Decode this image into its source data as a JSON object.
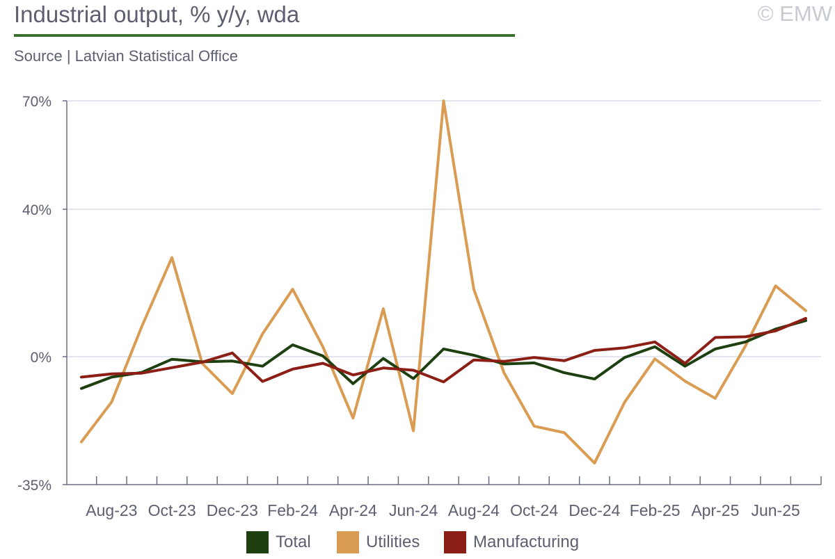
{
  "header": {
    "title": "Industrial output, % y/y, wda",
    "source": "Source | Latvian Statistical Office",
    "copyright": "© EMW"
  },
  "chart_data": {
    "type": "line",
    "title": "Industrial output, % y/y, wda",
    "xlabel": "",
    "ylabel": "",
    "ylim": [
      -35,
      70
    ],
    "yticks": [
      70,
      40,
      0,
      -35
    ],
    "ytick_labels": [
      "70%",
      "40%",
      "0%",
      "-35%"
    ],
    "grid": true,
    "legend": "bottom",
    "x": [
      "Jul-23",
      "Aug-23",
      "Sep-23",
      "Oct-23",
      "Nov-23",
      "Dec-23",
      "Jan-24",
      "Feb-24",
      "Mar-24",
      "Apr-24",
      "May-24",
      "Jun-24",
      "Jul-24",
      "Aug-24",
      "Sep-24",
      "Oct-24",
      "Nov-24",
      "Dec-24",
      "Jan-25",
      "Feb-25",
      "Mar-25",
      "Apr-25",
      "May-25",
      "Jun-25",
      "Jul-25"
    ],
    "xtick_labels": [
      "Aug-23",
      "Oct-23",
      "Dec-23",
      "Feb-24",
      "Apr-24",
      "Jun-24",
      "Aug-24",
      "Oct-24",
      "Dec-24",
      "Feb-25",
      "Apr-25",
      "Jun-25"
    ],
    "series": [
      {
        "name": "Total",
        "color": "#1e4010",
        "values": [
          -8.7,
          -5.6,
          -4.3,
          -0.7,
          -1.4,
          -1.2,
          -2.6,
          3.2,
          0.2,
          -7.4,
          -0.5,
          -6.0,
          2.1,
          0.4,
          -2.0,
          -1.7,
          -4.4,
          -6.1,
          -0.2,
          2.7,
          -2.6,
          2.1,
          4.0,
          7.5,
          9.8
        ]
      },
      {
        "name": "Utilities",
        "color": "#d99c52",
        "values": [
          -23.3,
          -12.4,
          8.2,
          26.9,
          -1.8,
          -10.1,
          6.2,
          18.3,
          2.7,
          -16.8,
          13.0,
          -20.3,
          70.0,
          18.3,
          -4.4,
          -19.0,
          -20.8,
          -29.1,
          -12.4,
          -0.6,
          -6.7,
          -11.4,
          2.9,
          19.2,
          12.5
        ]
      },
      {
        "name": "Manufacturing",
        "color": "#8c1f15",
        "values": [
          -5.6,
          -4.7,
          -4.5,
          -3.0,
          -1.5,
          1.0,
          -6.8,
          -3.4,
          -1.8,
          -5.0,
          -3.1,
          -3.7,
          -6.9,
          -0.9,
          -1.3,
          -0.2,
          -1.1,
          1.7,
          2.4,
          4.0,
          -1.8,
          5.2,
          5.4,
          7.0,
          10.4
        ]
      }
    ]
  }
}
